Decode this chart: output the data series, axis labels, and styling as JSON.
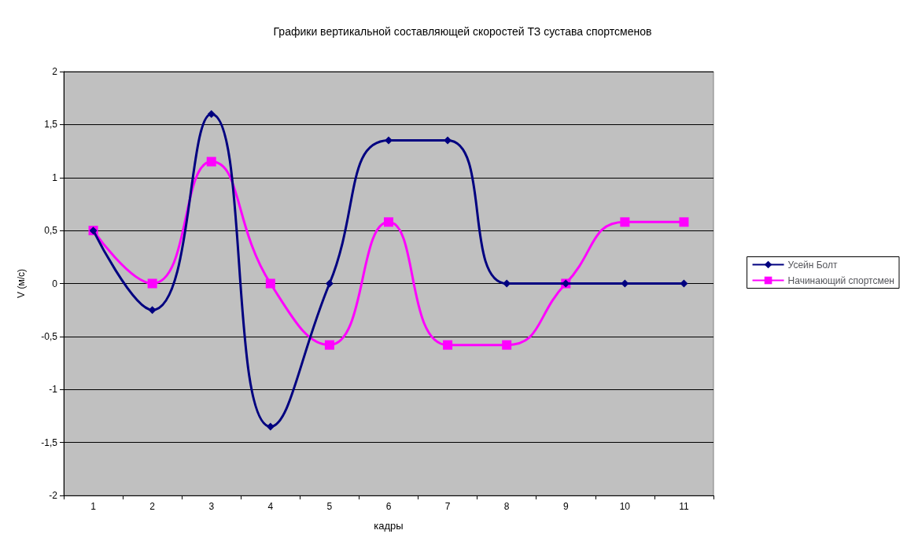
{
  "chart_data": {
    "type": "line",
    "title": "Графики вертикальной составляющей скоростей ТЗ сустава спортсменов",
    "xlabel": "кадры",
    "ylabel": "V (м/с)",
    "categories": [
      "1",
      "2",
      "3",
      "4",
      "5",
      "6",
      "7",
      "8",
      "9",
      "10",
      "11"
    ],
    "series": [
      {
        "name": "Усейн Болт",
        "color": "#000080",
        "marker": "diamond",
        "values": [
          0.5,
          -0.25,
          1.6,
          -1.35,
          0,
          1.35,
          1.35,
          0,
          0,
          0,
          0
        ]
      },
      {
        "name": "Начинающий спортсмен",
        "color": "#ff00ff",
        "marker": "square",
        "values": [
          0.5,
          0,
          1.15,
          0,
          -0.58,
          0.58,
          -0.58,
          -0.58,
          0,
          0.58,
          0.58
        ]
      }
    ],
    "ylim": [
      -2,
      2
    ],
    "yticks": [
      {
        "value": -2,
        "label": "-2"
      },
      {
        "value": -1.5,
        "label": "-1,5"
      },
      {
        "value": -1,
        "label": "-1"
      },
      {
        "value": -0.5,
        "label": "-0,5"
      },
      {
        "value": 0,
        "label": "0"
      },
      {
        "value": 0.5,
        "label": "0,5"
      },
      {
        "value": 1,
        "label": "1"
      },
      {
        "value": 1.5,
        "label": "1,5"
      },
      {
        "value": 2,
        "label": "2"
      }
    ],
    "grid": "y",
    "legend": "right",
    "line_style": "solid"
  }
}
